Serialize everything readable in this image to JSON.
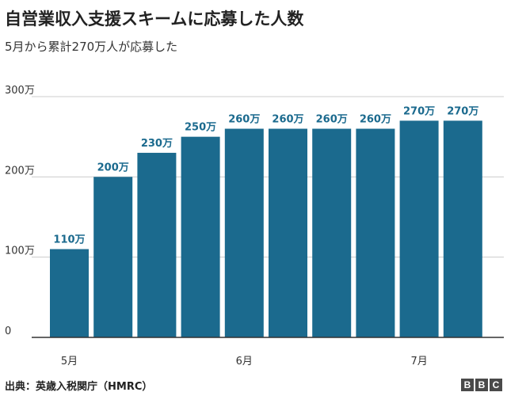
{
  "header": {
    "title": "自営業収入支援スキームに応募した人数",
    "subtitle": "5月から累計270万人が応募した"
  },
  "footer": {
    "source": "出典：英歳入税関庁（HMRC）"
  },
  "logo": {
    "letters": [
      "B",
      "B",
      "C"
    ]
  },
  "colors": {
    "bar": "#1b6a8e",
    "grid": "#cccccc",
    "axis": "#333333",
    "label": "#1b6a8e"
  },
  "chart_data": {
    "type": "bar",
    "title": "",
    "xlabel": "",
    "ylabel": "",
    "categories": [
      "",
      "",
      "",
      "",
      "",
      "",
      "",
      "",
      "",
      ""
    ],
    "x_tick_labels": [
      {
        "label": "5月",
        "index": 0
      },
      {
        "label": "6月",
        "index": 4
      },
      {
        "label": "7月",
        "index": 8
      }
    ],
    "values": [
      110,
      200,
      230,
      250,
      260,
      260,
      260,
      260,
      270,
      270
    ],
    "data_labels": [
      "110万",
      "200万",
      "230万",
      "250万",
      "260万",
      "260万",
      "260万",
      "260万",
      "270万",
      "270万"
    ],
    "yticks": [
      0,
      100,
      200,
      300
    ],
    "ytick_labels": [
      "0",
      "100万",
      "200万",
      "300万"
    ],
    "ylim": [
      0,
      300
    ],
    "grid": true,
    "legend": "none"
  }
}
